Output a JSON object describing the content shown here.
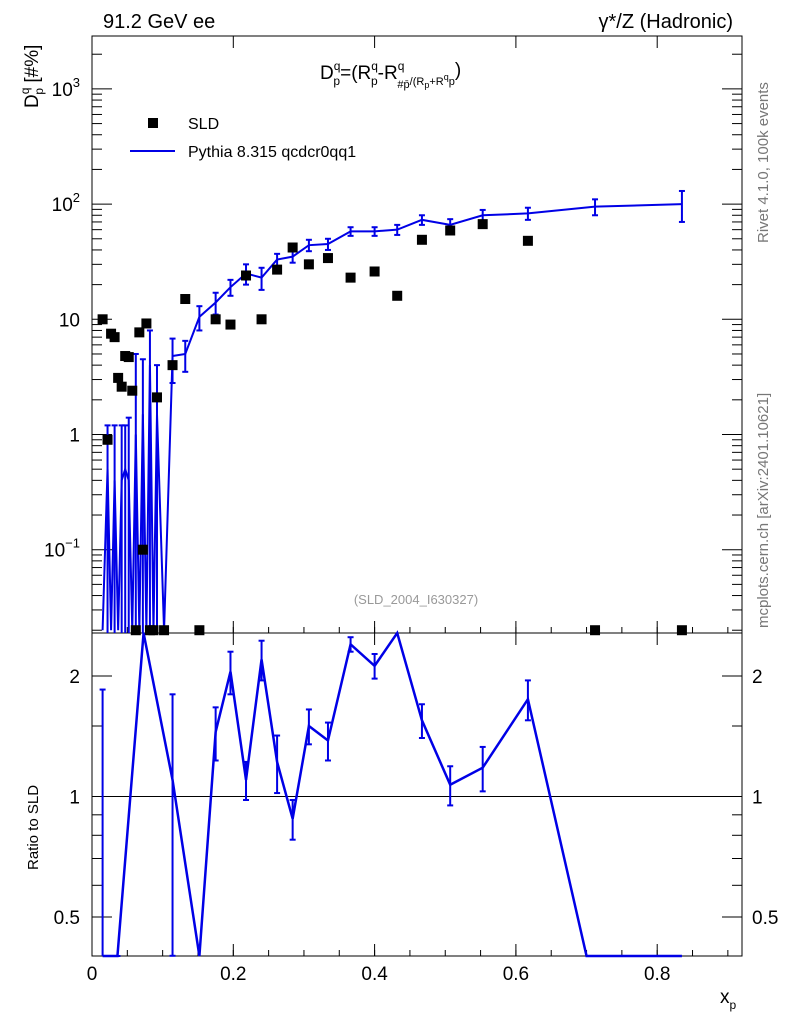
{
  "header": {
    "left": "91.2 GeV ee",
    "right": "γ*/Z (Hadronic)"
  },
  "side": {
    "rivet": "Rivet 4.1.0,  100k events",
    "mcplots": "mcplots.cern.ch [arXiv:2401.10621]"
  },
  "watermark": "(SLD_2004_I630327)",
  "chart_data": {
    "type": "scatter",
    "title": "D_p^q = (R_p^q - R_p̄^q)/(R_p^q + R_p̄^q)",
    "title_parts": {
      "lead": "D",
      "sup": "q",
      "sub": "p",
      "eq": "=(R",
      "minus": "-R",
      "pbar": "#p̄",
      "tail": ")",
      "denom": "/(R",
      "plus": "+R",
      "dq": "q",
      "dp": "p"
    },
    "ylabel": {
      "main": "D",
      "sup": "q",
      "sub": "p",
      "unit": " [#%]"
    },
    "xlabel": {
      "main": "x",
      "sub": "p"
    },
    "ratio_ylabel": "Ratio to SLD",
    "xlim": [
      0,
      0.92
    ],
    "ylim_log": [
      0.02,
      3000
    ],
    "ratio_ylim": [
      0.4,
      2.4
    ],
    "x_ticks": [
      "0",
      "0.2",
      "0.4",
      "0.6",
      "0.8"
    ],
    "y_ticks": [
      {
        "v": 1000,
        "base": "10",
        "exp": "3"
      },
      {
        "v": 100,
        "base": "10",
        "exp": "2"
      },
      {
        "v": 10,
        "base": "10",
        "exp": ""
      },
      {
        "v": 1,
        "base": "1",
        "exp": ""
      },
      {
        "v": 0.1,
        "base": "10",
        "exp": "−1"
      }
    ],
    "ratio_ticks": [
      {
        "v": 0.5,
        "label": "0.5"
      },
      {
        "v": 1,
        "label": "1"
      },
      {
        "v": 2,
        "label": "2"
      }
    ],
    "legend": {
      "position": "top-left",
      "data": "SLD",
      "mc": "Pythia 8.315 qcdcr0qq1"
    },
    "series": [
      {
        "name": "SLD",
        "x": [
          0.015,
          0.022,
          0.027,
          0.032,
          0.037,
          0.042,
          0.047,
          0.052,
          0.057,
          0.062,
          0.067,
          0.072,
          0.077,
          0.082,
          0.087,
          0.092,
          0.102,
          0.114,
          0.132,
          0.152,
          0.175,
          0.196,
          0.218,
          0.24,
          0.262,
          0.284,
          0.307,
          0.334,
          0.366,
          0.4,
          0.432,
          0.467,
          0.507,
          0.553,
          0.617,
          0.712,
          0.835
        ],
        "y": [
          10,
          0.9,
          7.5,
          7.0,
          3.1,
          2.6,
          4.8,
          4.7,
          2.4,
          0.02,
          7.7,
          0.1,
          9.2,
          0.02,
          0.02,
          2.1,
          0.02,
          4.0,
          15,
          0.02,
          10,
          9.0,
          24,
          10,
          27,
          42,
          30,
          34,
          23,
          26,
          16,
          49,
          59,
          67,
          48,
          0.02,
          0.02
        ]
      },
      {
        "name": "Pythia 8.315 qcdcr0qq1",
        "x": [
          0.015,
          0.022,
          0.027,
          0.032,
          0.037,
          0.042,
          0.047,
          0.052,
          0.057,
          0.062,
          0.067,
          0.072,
          0.077,
          0.082,
          0.087,
          0.092,
          0.102,
          0.114,
          0.132,
          0.152,
          0.175,
          0.196,
          0.218,
          0.24,
          0.262,
          0.284,
          0.307,
          0.334,
          0.366,
          0.4,
          0.432,
          0.467,
          0.507,
          0.553,
          0.617,
          0.712,
          0.835
        ],
        "y": [
          0.02,
          0.5,
          0.02,
          0.4,
          0.02,
          0.4,
          0.5,
          0.4,
          0.02,
          1.0,
          0.02,
          1.5,
          0.02,
          4.0,
          0.02,
          1.5,
          0.02,
          4.8,
          5.0,
          10.5,
          14,
          19,
          25,
          23,
          33,
          35,
          44,
          45,
          58,
          58,
          60,
          73,
          66,
          80,
          83,
          95,
          100
        ],
        "err": [
          0,
          0.7,
          0,
          0.8,
          0,
          0.8,
          0.7,
          1.0,
          0,
          4.0,
          0,
          3.0,
          0,
          4.0,
          0,
          2.5,
          0,
          2.0,
          1.5,
          2.5,
          3.0,
          3.0,
          5.0,
          5.0,
          4.0,
          4.0,
          5.0,
          5.0,
          5.0,
          5.0,
          6.0,
          7.0,
          8.0,
          9.0,
          10.0,
          15.0,
          30.0
        ]
      },
      {
        "name": "Ratio to SLD",
        "x": [
          0.015,
          0.036,
          0.073,
          0.114,
          0.152,
          0.175,
          0.196,
          0.218,
          0.24,
          0.262,
          0.284,
          0.307,
          0.334,
          0.366,
          0.4,
          0.432,
          0.467,
          0.507,
          0.553,
          0.617,
          0.7,
          0.712,
          0.835
        ],
        "y": [
          0.25,
          0.25,
          3.0,
          1.1,
          0.25,
          1.45,
          2.05,
          1.1,
          2.2,
          1.22,
          0.88,
          1.5,
          1.38,
          2.4,
          2.12,
          2.9,
          1.55,
          1.07,
          1.18,
          1.75,
          0.3,
          0.3,
          0.3
        ],
        "err": [
          1.6,
          0.05,
          0,
          0.7,
          0,
          0.22,
          0.25,
          0.12,
          0.25,
          0.2,
          0.1,
          0.15,
          0.15,
          0.1,
          0.15,
          0,
          0.15,
          0.12,
          0.15,
          0.2,
          0,
          0,
          0
        ]
      }
    ]
  }
}
